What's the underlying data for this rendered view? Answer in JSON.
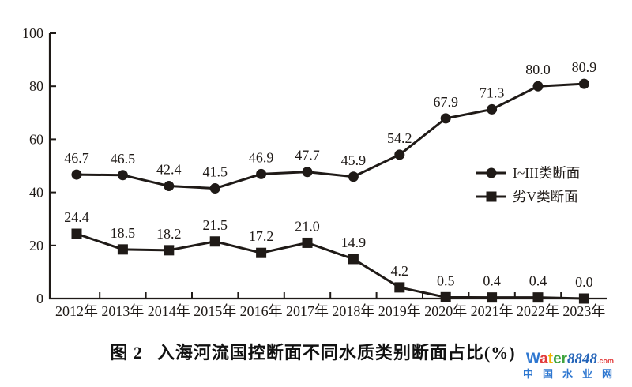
{
  "figure": {
    "caption_label": "图 2",
    "caption_text": "入海河流国控断面不同水质类别断面占比(%)"
  },
  "chart_data": {
    "type": "line",
    "title": "入海河流国控断面不同水质类别断面占比(%)",
    "categories": [
      "2012年",
      "2013年",
      "2014年",
      "2015年",
      "2016年",
      "2017年",
      "2018年",
      "2019年",
      "2020年",
      "2021年",
      "2022年",
      "2023年"
    ],
    "series": [
      {
        "name": "I~III类断面",
        "marker": "circle",
        "values": [
          46.7,
          46.5,
          42.4,
          41.5,
          46.9,
          47.7,
          45.9,
          54.2,
          67.9,
          71.3,
          80.0,
          80.9
        ]
      },
      {
        "name": "劣V类断面",
        "marker": "square",
        "values": [
          24.4,
          18.5,
          18.2,
          21.5,
          17.2,
          21.0,
          14.9,
          4.2,
          0.5,
          0.4,
          0.4,
          0.0
        ]
      }
    ],
    "xlabel": "",
    "ylabel": "",
    "ylim": [
      0,
      100
    ],
    "yticks": [
      0,
      20,
      40,
      60,
      80,
      100
    ],
    "grid": false,
    "data_labels": true,
    "legend_position": "inside-right-middle",
    "line_color": "#1f1a17",
    "background": "#ffffff"
  },
  "watermark": {
    "brand_letters": [
      {
        "ch": "W",
        "color": "#2e77d0"
      },
      {
        "ch": "a",
        "color": "#e23a3a"
      },
      {
        "ch": "t",
        "color": "#f2b200"
      },
      {
        "ch": "e",
        "color": "#3fa43f"
      },
      {
        "ch": "r",
        "color": "#3fa43f"
      }
    ],
    "brand_number": "8848",
    "brand_number_color": "#2464b8",
    "brand_suffix": ".com",
    "brand_suffix_color": "#e23a3a",
    "subtitle": "中国水业网",
    "subtitle_color": "#2e77d0"
  }
}
